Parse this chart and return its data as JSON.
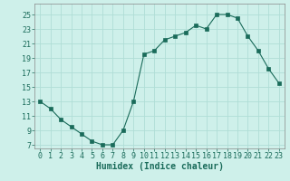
{
  "x": [
    0,
    1,
    2,
    3,
    4,
    5,
    6,
    7,
    8,
    9,
    10,
    11,
    12,
    13,
    14,
    15,
    16,
    17,
    18,
    19,
    20,
    21,
    22,
    23
  ],
  "y": [
    13,
    12,
    10.5,
    9.5,
    8.5,
    7.5,
    7,
    7,
    9,
    13,
    19.5,
    20,
    21.5,
    22,
    22.5,
    23.5,
    23,
    25,
    25,
    24.5,
    22,
    20,
    17.5,
    15.5
  ],
  "xlabel": "Humidex (Indice chaleur)",
  "xlim": [
    -0.5,
    23.5
  ],
  "ylim": [
    6.5,
    26.5
  ],
  "yticks": [
    7,
    9,
    11,
    13,
    15,
    17,
    19,
    21,
    23,
    25
  ],
  "xticks": [
    0,
    1,
    2,
    3,
    4,
    5,
    6,
    7,
    8,
    9,
    10,
    11,
    12,
    13,
    14,
    15,
    16,
    17,
    18,
    19,
    20,
    21,
    22,
    23
  ],
  "line_color": "#1a6b5a",
  "marker": "s",
  "marker_size": 2.5,
  "bg_color": "#cef0ea",
  "grid_color": "#b0ddd6",
  "label_fontsize": 7,
  "tick_fontsize": 6,
  "font_family": "monospace"
}
